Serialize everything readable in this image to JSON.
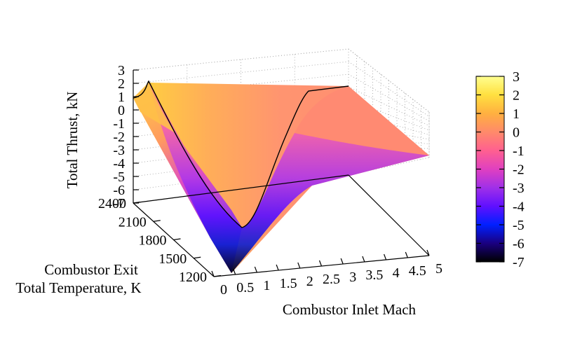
{
  "chart_data": {
    "type": "surface3d",
    "x_axis": {
      "label": "Combustor Inlet Mach",
      "range": [
        0,
        5
      ],
      "ticks": [
        "0",
        "0.5",
        "1",
        "1.5",
        "2",
        "2.5",
        "3",
        "3.5",
        "4",
        "4.5",
        "5"
      ]
    },
    "y_axis": {
      "label_lines": [
        "Combustor Exit",
        "Total Temperature, K"
      ],
      "range": [
        1200,
        2400
      ],
      "ticks": [
        "1200",
        "1500",
        "1800",
        "2100",
        "2400"
      ]
    },
    "z_axis": {
      "label": "Total Thrust, kN",
      "range": [
        -7,
        3
      ],
      "ticks": [
        "3",
        "2",
        "1",
        "0",
        "-1",
        "-2",
        "-3",
        "-4",
        "-5",
        "-6",
        "-7"
      ]
    },
    "colorbar": {
      "range": [
        -7,
        3
      ],
      "ticks": [
        "3",
        "2",
        "1",
        "0",
        "-1",
        "-2",
        "-3",
        "-4",
        "-5",
        "-6",
        "-7"
      ],
      "colors": [
        "#000000",
        "#1a0080",
        "#0020ff",
        "#6010ff",
        "#a030e8",
        "#e040c0",
        "#ff6090",
        "#ff8a6a",
        "#ffb040",
        "#ffe040",
        "#ffff90"
      ]
    },
    "contour_zero_line": {
      "level": 0,
      "mach": [
        0.0,
        0.5,
        1.0,
        1.5,
        2.0,
        2.5,
        3.0,
        3.5,
        4.0,
        4.5,
        5.0
      ],
      "thrust_at_2400K": [
        1.1,
        1.0,
        -2.5,
        -5.5,
        -5.9,
        -3.5,
        -0.5,
        0.5,
        0.8,
        1.0,
        1.1
      ]
    },
    "grid": true
  }
}
